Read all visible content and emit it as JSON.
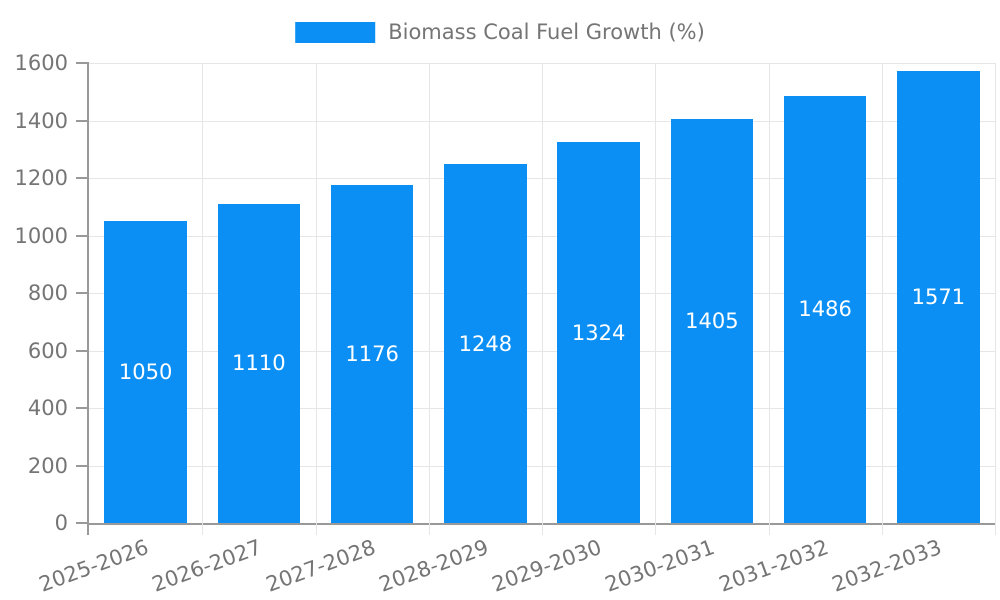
{
  "legend": {
    "label": "Biomass Coal Fuel Growth (%)"
  },
  "colors": {
    "bar": "#0C8FF4",
    "axis": "#999999",
    "grid": "#e6e6e6",
    "text": "#757575",
    "value_label": "#ffffff",
    "background": "#ffffff"
  },
  "chart_data": {
    "type": "bar",
    "title": "",
    "legend": "Biomass Coal Fuel Growth (%)",
    "legend_position": "top center",
    "categories": [
      "2025-2026",
      "2026-2027",
      "2027-2028",
      "2028-2029",
      "2029-2030",
      "2030-2031",
      "2031-2032",
      "2032-2033"
    ],
    "values": [
      1050,
      1110,
      1176,
      1248,
      1324,
      1405,
      1486,
      1571
    ],
    "xlabel": "",
    "ylabel": "",
    "ylim": [
      0,
      1600
    ],
    "yticks": [
      0,
      200,
      400,
      600,
      800,
      1000,
      1200,
      1400,
      1600
    ],
    "grid": "horizontal and vertical light gray gridlines",
    "value_labels": "white, centered inside bars",
    "x_tick_rotation_deg": -20
  }
}
